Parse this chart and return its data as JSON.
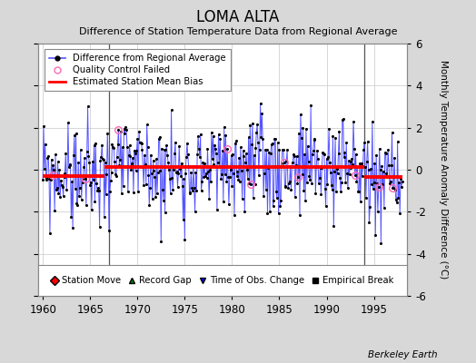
{
  "title": "LOMA ALTA",
  "subtitle": "Difference of Station Temperature Data from Regional Average",
  "ylabel": "Monthly Temperature Anomaly Difference (°C)",
  "xlabel_years": [
    1960,
    1965,
    1970,
    1975,
    1980,
    1985,
    1990,
    1995
  ],
  "ylim": [
    -6,
    6
  ],
  "xlim": [
    1959.5,
    1998.5
  ],
  "background_color": "#d8d8d8",
  "plot_bg_color": "#ffffff",
  "grid_color": "#c8c8c8",
  "line_color": "#5555ff",
  "dot_color": "#000000",
  "bias_color": "#ff0000",
  "qc_color": "#ff69b4",
  "empirical_break_years": [
    1967,
    1994
  ],
  "vertical_line_years": [
    1967,
    1994
  ],
  "bias_segments": [
    {
      "start": 1960.0,
      "end": 1966.5,
      "value": -0.3
    },
    {
      "start": 1966.5,
      "end": 1994.0,
      "value": 0.12
    },
    {
      "start": 1994.0,
      "end": 1998.0,
      "value": -0.35
    }
  ],
  "qc_failed_times": [
    1961.0,
    1964.5,
    1968.0,
    1979.5,
    1982.0,
    1985.5,
    1987.0,
    1993.0,
    1995.5,
    1997.0
  ],
  "berkeley_earth_label": "Berkeley Earth"
}
